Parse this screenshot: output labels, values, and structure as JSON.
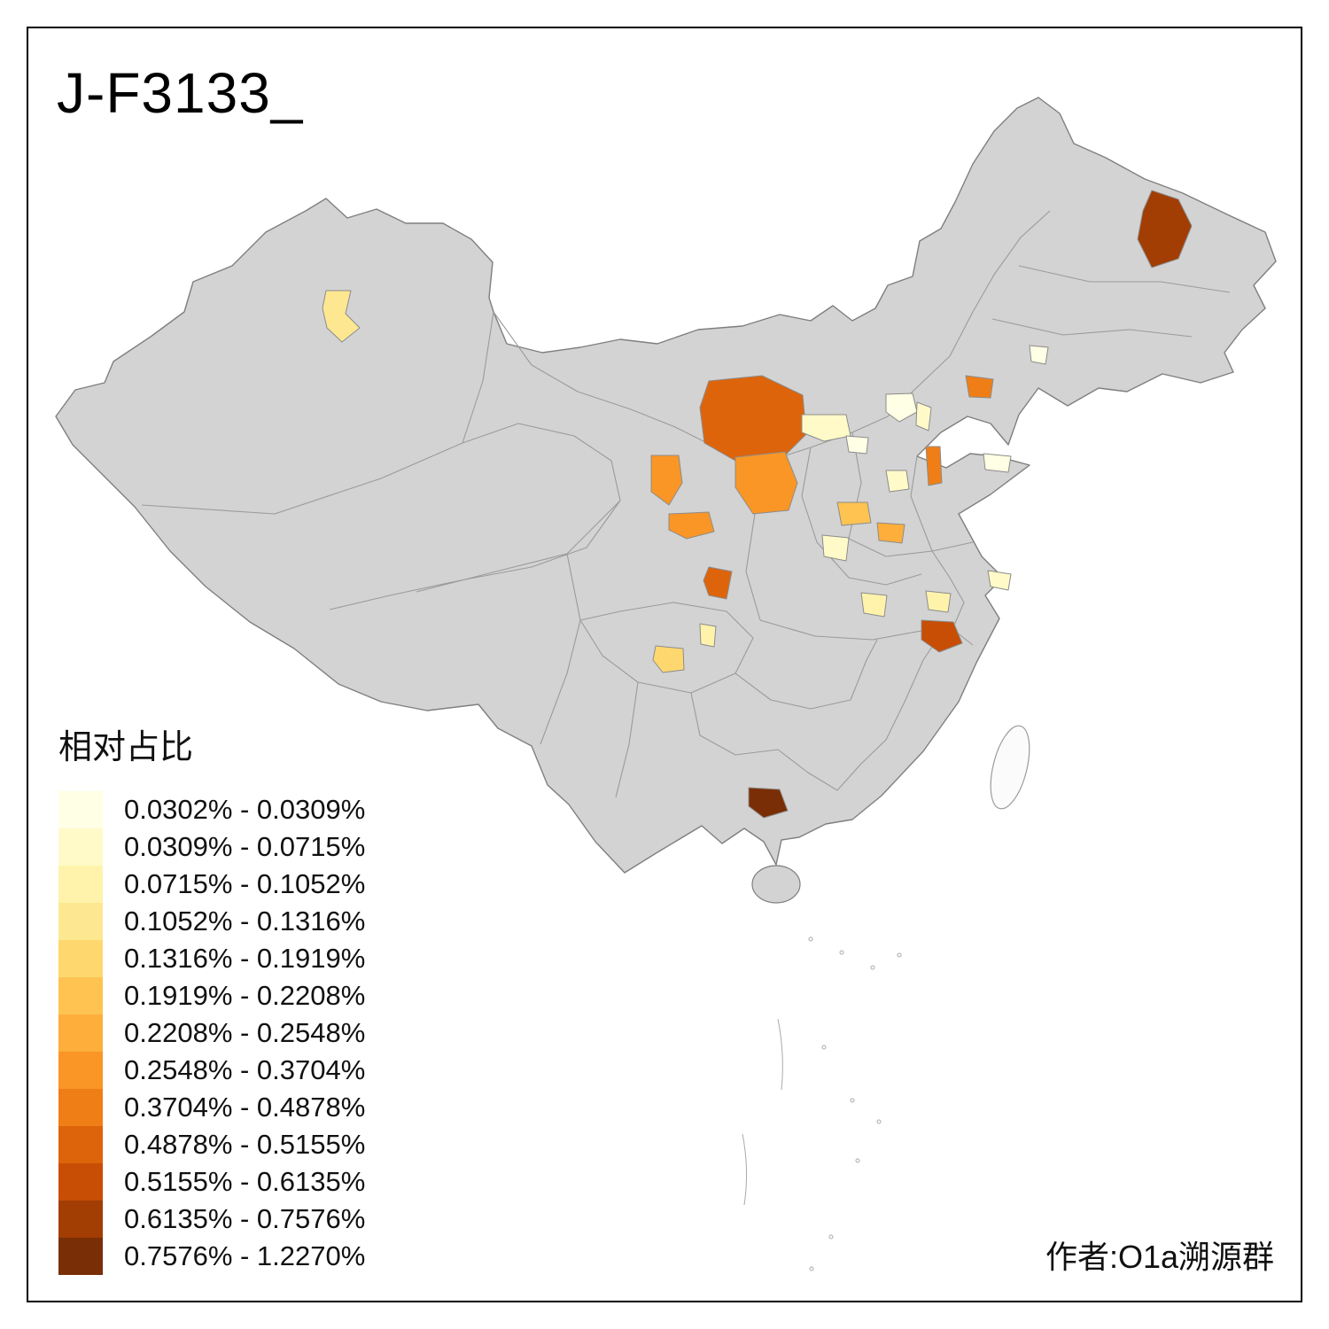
{
  "title": "J-F3133_",
  "attribution": "作者:O1a溯源群",
  "legend": {
    "title": "相对占比",
    "items": [
      {
        "color": "#FFFFE5",
        "label": "0.0302% - 0.0309%"
      },
      {
        "color": "#FFFAC8",
        "label": "0.0309% - 0.0715%"
      },
      {
        "color": "#FFF3AC",
        "label": "0.0715% - 0.1052%"
      },
      {
        "color": "#FEE791",
        "label": "0.1052% - 0.1316%"
      },
      {
        "color": "#FED86E",
        "label": "0.1316% - 0.1919%"
      },
      {
        "color": "#FEC351",
        "label": "0.1919% - 0.2208%"
      },
      {
        "color": "#FDAE3B",
        "label": "0.2208% - 0.2548%"
      },
      {
        "color": "#F99626",
        "label": "0.2548% - 0.3704%"
      },
      {
        "color": "#EF7E17",
        "label": "0.3704% - 0.4878%"
      },
      {
        "color": "#DE640B",
        "label": "0.4878% - 0.5155%"
      },
      {
        "color": "#C74E04",
        "label": "0.5155% - 0.6135%"
      },
      {
        "color": "#A23D03",
        "label": "0.6135% - 0.7576%"
      },
      {
        "color": "#7A2E05",
        "label": "0.7576% - 1.2270%"
      }
    ]
  },
  "map": {
    "base_fill": "#D3D3D3",
    "border_color": "#8C8C8C",
    "background": "#FFFFFF",
    "regions": [
      {
        "id": "r01",
        "class": 12
      },
      {
        "id": "r02",
        "class": 4
      },
      {
        "id": "r03",
        "class": 10
      },
      {
        "id": "r04",
        "class": 8
      },
      {
        "id": "r05",
        "class": 8
      },
      {
        "id": "r06",
        "class": 8
      },
      {
        "id": "r07",
        "class": 10
      },
      {
        "id": "r08",
        "class": 1
      },
      {
        "id": "r09",
        "class": 2
      },
      {
        "id": "r10",
        "class": 2
      },
      {
        "id": "r11",
        "class": 1
      },
      {
        "id": "r12",
        "class": 9
      },
      {
        "id": "r13",
        "class": 1
      },
      {
        "id": "r14",
        "class": 9
      },
      {
        "id": "r15",
        "class": 2
      },
      {
        "id": "r16",
        "class": 1
      },
      {
        "id": "r17",
        "class": 6
      },
      {
        "id": "r18",
        "class": 7
      },
      {
        "id": "r19",
        "class": 2
      },
      {
        "id": "r20",
        "class": 3
      },
      {
        "id": "r21",
        "class": 3
      },
      {
        "id": "r22",
        "class": 2
      },
      {
        "id": "r23",
        "class": 11
      },
      {
        "id": "r24",
        "class": 3
      },
      {
        "id": "r25",
        "class": 5
      },
      {
        "id": "r26",
        "class": 13
      }
    ]
  }
}
